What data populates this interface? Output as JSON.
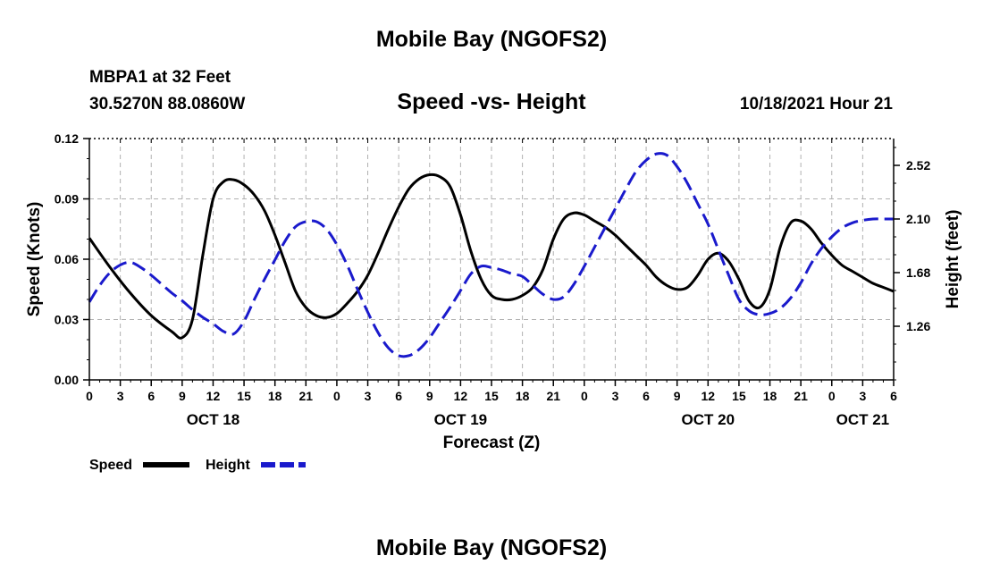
{
  "header": {
    "title": "Mobile Bay (NGOFS2)",
    "station": "MBPA1 at 32 Feet",
    "coordinates": "30.5270N  88.0860W",
    "subtitle": "Speed -vs- Height",
    "timestamp": "10/18/2021 Hour 21"
  },
  "footer": {
    "title": "Mobile Bay (NGOFS2)"
  },
  "colors": {
    "speed": "#000000",
    "height": "#1a1acc",
    "grid": "#b0b0b0"
  },
  "chart_data": {
    "type": "line",
    "title": "Speed -vs- Height",
    "xlabel": "Forecast (Z)",
    "ylabel": "Speed (Knots)",
    "y2label": "Height (feet)",
    "x_unit": "hours from OCT 18 00Z",
    "xlim": [
      0,
      78
    ],
    "ylim": [
      0,
      0.12
    ],
    "y2lim": [
      0.84,
      2.73
    ],
    "x_ticks": [
      0,
      3,
      6,
      9,
      12,
      15,
      18,
      21,
      24,
      27,
      30,
      33,
      36,
      39,
      42,
      45,
      48,
      51,
      54,
      57,
      60,
      63,
      66,
      69,
      72,
      75,
      78
    ],
    "x_tick_labels": [
      "0",
      "3",
      "6",
      "9",
      "12",
      "15",
      "18",
      "21",
      "0",
      "3",
      "6",
      "9",
      "12",
      "15",
      "18",
      "21",
      "0",
      "3",
      "6",
      "9",
      "12",
      "15",
      "18",
      "21",
      "0",
      "3",
      "6"
    ],
    "date_labels": [
      {
        "x": 12,
        "label": "OCT 18"
      },
      {
        "x": 36,
        "label": "OCT 19"
      },
      {
        "x": 60,
        "label": "OCT 20"
      },
      {
        "x": 75,
        "label": "OCT 21"
      }
    ],
    "y_ticks": [
      0,
      0.03,
      0.06,
      0.09,
      0.12
    ],
    "y_tick_labels": [
      "0.00",
      "0.03",
      "0.06",
      "0.09",
      "0.12"
    ],
    "y2_ticks": [
      1.26,
      1.68,
      2.1,
      2.52
    ],
    "y2_tick_labels": [
      "1.26",
      "1.68",
      "2.10",
      "2.52"
    ],
    "legend": [
      "Speed",
      "Height"
    ],
    "legend_position": "bottom-left",
    "grid": true,
    "series": [
      {
        "name": "Speed",
        "axis": "left",
        "style": "solid",
        "x": [
          0,
          2,
          4,
          6,
          8,
          9,
          10,
          11,
          12,
          13,
          14,
          15,
          16,
          17,
          18,
          19,
          20,
          21,
          22,
          23,
          24,
          25,
          26,
          27,
          28,
          29,
          30,
          31,
          32,
          33,
          34,
          35,
          36,
          37,
          38,
          39,
          40,
          41,
          42,
          43,
          44,
          45,
          46,
          47,
          48,
          49,
          50,
          51,
          52,
          53,
          54,
          55,
          56,
          57,
          58,
          59,
          60,
          61,
          62,
          63,
          64,
          65,
          66,
          67,
          68,
          69,
          70,
          71,
          72,
          73,
          74,
          75,
          76,
          77,
          78
        ],
        "values": [
          0.0705,
          0.056,
          0.043,
          0.032,
          0.024,
          0.021,
          0.03,
          0.062,
          0.09,
          0.0985,
          0.0995,
          0.097,
          0.092,
          0.084,
          0.072,
          0.058,
          0.044,
          0.036,
          0.032,
          0.031,
          0.033,
          0.038,
          0.044,
          0.052,
          0.063,
          0.075,
          0.086,
          0.095,
          0.1,
          0.102,
          0.101,
          0.096,
          0.082,
          0.064,
          0.05,
          0.042,
          0.04,
          0.04,
          0.042,
          0.046,
          0.055,
          0.07,
          0.08,
          0.083,
          0.082,
          0.079,
          0.076,
          0.072,
          0.067,
          0.062,
          0.057,
          0.051,
          0.047,
          0.045,
          0.046,
          0.052,
          0.06,
          0.063,
          0.059,
          0.05,
          0.039,
          0.036,
          0.045,
          0.066,
          0.078,
          0.079,
          0.075,
          0.068,
          0.062,
          0.057,
          0.054,
          0.051,
          0.048,
          0.046,
          0.044
        ]
      },
      {
        "name": "Height",
        "axis": "right",
        "style": "dashed",
        "x": [
          0,
          1,
          2,
          3,
          4,
          5,
          6,
          7,
          8,
          9,
          10,
          11,
          12,
          13,
          14,
          15,
          16,
          17,
          18,
          19,
          20,
          21,
          22,
          23,
          24,
          25,
          26,
          27,
          28,
          29,
          30,
          31,
          32,
          33,
          34,
          35,
          36,
          37,
          38,
          39,
          40,
          41,
          42,
          43,
          44,
          45,
          46,
          47,
          48,
          49,
          50,
          51,
          52,
          53,
          54,
          55,
          56,
          57,
          58,
          59,
          60,
          61,
          62,
          63,
          64,
          65,
          66,
          67,
          68,
          69,
          70,
          71,
          72,
          73,
          74,
          75,
          76,
          77,
          78
        ],
        "values": [
          1.45,
          1.58,
          1.68,
          1.74,
          1.76,
          1.72,
          1.66,
          1.59,
          1.52,
          1.46,
          1.39,
          1.33,
          1.28,
          1.22,
          1.2,
          1.3,
          1.47,
          1.63,
          1.78,
          1.93,
          2.04,
          2.08,
          2.08,
          2.02,
          1.9,
          1.74,
          1.55,
          1.37,
          1.21,
          1.09,
          1.03,
          1.03,
          1.08,
          1.17,
          1.29,
          1.41,
          1.54,
          1.67,
          1.73,
          1.72,
          1.7,
          1.67,
          1.65,
          1.58,
          1.51,
          1.47,
          1.49,
          1.59,
          1.73,
          1.88,
          2.03,
          2.18,
          2.33,
          2.47,
          2.56,
          2.61,
          2.6,
          2.51,
          2.38,
          2.22,
          2.06,
          1.86,
          1.66,
          1.47,
          1.38,
          1.35,
          1.36,
          1.4,
          1.48,
          1.6,
          1.75,
          1.87,
          1.96,
          2.03,
          2.07,
          2.09,
          2.1,
          2.1,
          2.1
        ]
      }
    ]
  }
}
